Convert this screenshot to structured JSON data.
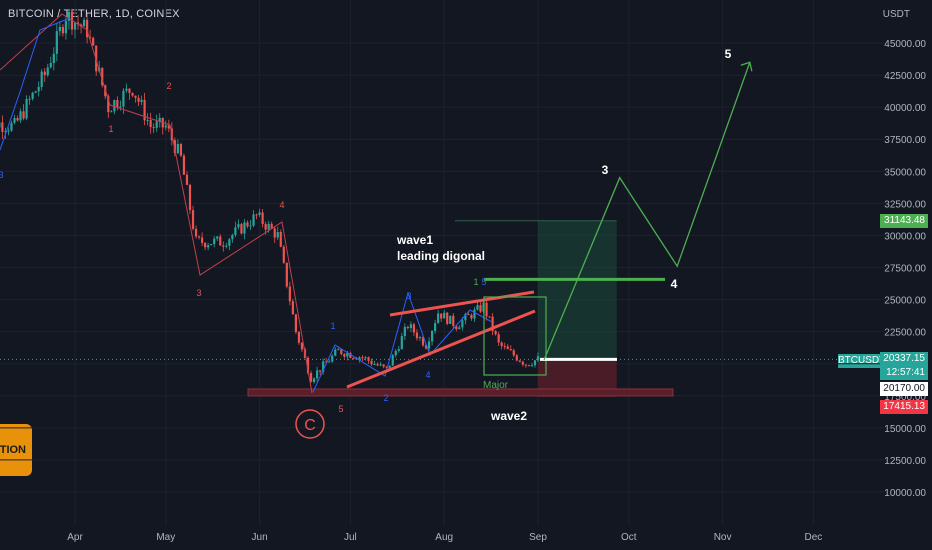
{
  "header": {
    "symbol_title": "BITCOIN / TETHER, 1D, COINEX"
  },
  "price_axis": {
    "currency": "USDT",
    "ticks": [
      "45000.00",
      "42500.00",
      "40000.00",
      "37500.00",
      "35000.00",
      "32500.00",
      "30000.00",
      "27500.00",
      "25000.00",
      "22500.00",
      "20000.00",
      "17500.00",
      "15000.00",
      "12500.00",
      "10000.00"
    ]
  },
  "time_axis": {
    "ticks": [
      "Apr",
      "May",
      "Jun",
      "Jul",
      "Aug",
      "Sep",
      "Oct",
      "Nov",
      "Dec"
    ]
  },
  "badges": {
    "target": "31143.48",
    "symbol": "BTCUSDT",
    "last_price": "20337.15",
    "countdown": "12:57:41",
    "entry": "20170.00",
    "stop": "17415.13"
  },
  "side_banner": {
    "text": "TION"
  },
  "annotations": {
    "wave1_title": "wave1",
    "wave1_sub": "leading digonal",
    "wave2": "wave2",
    "major": "Major",
    "circle_c": "C",
    "target_labels": [
      "3",
      "4",
      "5"
    ]
  },
  "colors": {
    "up": "#26a69a",
    "down": "#ef5350",
    "green_line": "#4caf50",
    "red_line": "#f23645",
    "blue": "#2962ff",
    "bg": "#131722"
  },
  "chart_data": {
    "type": "candlestick",
    "title": "BITCOIN / TETHER, 1D, COINEX",
    "x_range": [
      "2022-03-01",
      "2022-12-15"
    ],
    "ylim": [
      9000,
      48000
    ],
    "close_path": [
      {
        "date": "2022-03-01",
        "price": 39000
      },
      {
        "date": "2022-03-12",
        "price": 38500
      },
      {
        "date": "2022-03-22",
        "price": 42500
      },
      {
        "date": "2022-03-29",
        "price": 47200
      },
      {
        "date": "2022-04-05",
        "price": 46000
      },
      {
        "date": "2022-04-12",
        "price": 40000
      },
      {
        "date": "2022-04-20",
        "price": 41500
      },
      {
        "date": "2022-04-26",
        "price": 38500
      },
      {
        "date": "2022-05-01",
        "price": 38500
      },
      {
        "date": "2022-05-06",
        "price": 36000
      },
      {
        "date": "2022-05-11",
        "price": 29500
      },
      {
        "date": "2022-05-20",
        "price": 29500
      },
      {
        "date": "2022-05-31",
        "price": 31500
      },
      {
        "date": "2022-06-07",
        "price": 30000
      },
      {
        "date": "2022-06-13",
        "price": 22500
      },
      {
        "date": "2022-06-18",
        "price": 18900
      },
      {
        "date": "2022-06-27",
        "price": 21000
      },
      {
        "date": "2022-07-05",
        "price": 20500
      },
      {
        "date": "2022-07-13",
        "price": 19500
      },
      {
        "date": "2022-07-20",
        "price": 23000
      },
      {
        "date": "2022-07-26",
        "price": 21500
      },
      {
        "date": "2022-07-30",
        "price": 24000
      },
      {
        "date": "2022-08-05",
        "price": 23000
      },
      {
        "date": "2022-08-14",
        "price": 24500
      },
      {
        "date": "2022-08-19",
        "price": 21500
      },
      {
        "date": "2022-08-28",
        "price": 20000
      },
      {
        "date": "2022-09-01",
        "price": 20337
      }
    ],
    "projection": [
      {
        "label": "start",
        "date": "2022-09-03",
        "price": 20300
      },
      {
        "label": "3",
        "date": "2022-09-28",
        "price": 34500
      },
      {
        "label": "4",
        "date": "2022-10-17",
        "price": 27600
      },
      {
        "label": "5",
        "date": "2022-11-10",
        "price": 43500
      }
    ],
    "levels": {
      "target": 31143.48,
      "last": 20337.15,
      "entry": 20170.0,
      "stop": 17415.13,
      "wave4_line": 26500,
      "support": 17800
    }
  }
}
